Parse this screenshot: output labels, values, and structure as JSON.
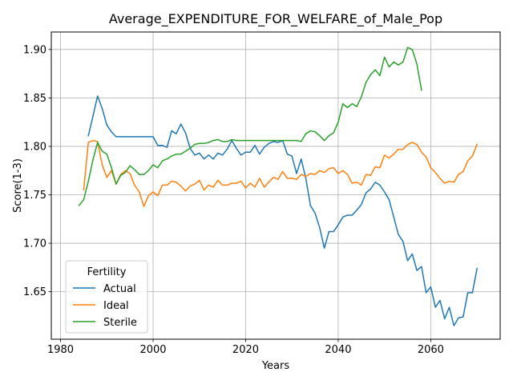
{
  "chart_data": {
    "type": "line",
    "title": "Average_EXPENDITURE_FOR_WELFARE_of_Male_Pop",
    "xlabel": "Years",
    "ylabel": "Score(1-3)",
    "xlim": [
      1978,
      2075
    ],
    "ylim": [
      1.601,
      1.918
    ],
    "xticks": [
      1980,
      2000,
      2020,
      2040,
      2060
    ],
    "xtick_labels": [
      "1980",
      "2000",
      "2020",
      "2040",
      "2060"
    ],
    "yticks": [
      1.65,
      1.7,
      1.75,
      1.8,
      1.85,
      1.9
    ],
    "ytick_labels": [
      "1.65",
      "1.70",
      "1.75",
      "1.80",
      "1.85",
      "1.90"
    ],
    "grid": true,
    "legend": {
      "title": "Fertility",
      "placement": "lower-left"
    },
    "series": [
      {
        "name": "Actual",
        "color": "#1f77b4",
        "x": [
          1986,
          1987,
          1988,
          1989,
          1990,
          1991,
          1992,
          1993,
          1994,
          1995,
          1996,
          1997,
          1998,
          1999,
          2000,
          2001,
          2002,
          2003,
          2004,
          2005,
          2006,
          2007,
          2008,
          2009,
          2010,
          2011,
          2012,
          2013,
          2014,
          2015,
          2016,
          2017,
          2018,
          2019,
          2020,
          2021,
          2022,
          2023,
          2024,
          2025,
          2026,
          2027,
          2028,
          2029,
          2030,
          2031,
          2032,
          2033,
          2034,
          2035,
          2036,
          2037,
          2038,
          2039,
          2040,
          2041,
          2042,
          2043,
          2044,
          2045,
          2046,
          2047,
          2048,
          2049,
          2050,
          2051,
          2052,
          2053,
          2054,
          2055,
          2056,
          2057,
          2058,
          2059,
          2060,
          2061,
          2062,
          2063,
          2064,
          2065,
          2066,
          2067,
          2068,
          2069,
          2070
        ],
        "values": [
          1.811,
          1.831,
          1.852,
          1.839,
          1.822,
          1.815,
          1.81,
          1.81,
          1.81,
          1.81,
          1.81,
          1.81,
          1.81,
          1.81,
          1.81,
          1.801,
          1.801,
          1.799,
          1.816,
          1.813,
          1.823,
          1.814,
          1.798,
          1.791,
          1.793,
          1.787,
          1.791,
          1.787,
          1.793,
          1.791,
          1.797,
          1.806,
          1.798,
          1.791,
          1.794,
          1.794,
          1.801,
          1.792,
          1.799,
          1.803,
          1.805,
          1.804,
          1.806,
          1.792,
          1.79,
          1.772,
          1.787,
          1.767,
          1.739,
          1.731,
          1.716,
          1.695,
          1.712,
          1.712,
          1.719,
          1.727,
          1.729,
          1.729,
          1.734,
          1.74,
          1.752,
          1.756,
          1.763,
          1.76,
          1.753,
          1.745,
          1.727,
          1.709,
          1.702,
          1.682,
          1.689,
          1.672,
          1.676,
          1.649,
          1.655,
          1.634,
          1.641,
          1.622,
          1.634,
          1.615,
          1.623,
          1.624,
          1.649,
          1.649,
          1.674
        ]
      },
      {
        "name": "Ideal",
        "color": "#ff7f0e",
        "x": [
          1985,
          1986,
          1987,
          1988,
          1989,
          1990,
          1991,
          1992,
          1993,
          1994,
          1995,
          1996,
          1997,
          1998,
          1999,
          2000,
          2001,
          2002,
          2003,
          2004,
          2005,
          2006,
          2007,
          2008,
          2009,
          2010,
          2011,
          2012,
          2013,
          2014,
          2015,
          2016,
          2017,
          2018,
          2019,
          2020,
          2021,
          2022,
          2023,
          2024,
          2025,
          2026,
          2027,
          2028,
          2029,
          2030,
          2031,
          2032,
          2033,
          2034,
          2035,
          2036,
          2037,
          2038,
          2039,
          2040,
          2041,
          2042,
          2043,
          2044,
          2045,
          2046,
          2047,
          2048,
          2049,
          2050,
          2051,
          2052,
          2053,
          2054,
          2055,
          2056,
          2057,
          2058,
          2059,
          2060,
          2061,
          2062,
          2063,
          2064,
          2065,
          2066,
          2067,
          2068,
          2069,
          2070
        ],
        "values": [
          1.755,
          1.804,
          1.806,
          1.805,
          1.781,
          1.768,
          1.775,
          1.761,
          1.771,
          1.775,
          1.772,
          1.76,
          1.753,
          1.738,
          1.749,
          1.753,
          1.749,
          1.76,
          1.76,
          1.764,
          1.763,
          1.759,
          1.754,
          1.759,
          1.761,
          1.765,
          1.755,
          1.76,
          1.758,
          1.765,
          1.76,
          1.76,
          1.762,
          1.762,
          1.764,
          1.757,
          1.762,
          1.758,
          1.767,
          1.758,
          1.763,
          1.768,
          1.766,
          1.774,
          1.767,
          1.767,
          1.766,
          1.771,
          1.769,
          1.772,
          1.771,
          1.775,
          1.773,
          1.777,
          1.778,
          1.772,
          1.775,
          1.771,
          1.762,
          1.763,
          1.76,
          1.771,
          1.77,
          1.779,
          1.778,
          1.791,
          1.788,
          1.792,
          1.797,
          1.797,
          1.802,
          1.804,
          1.802,
          1.794,
          1.789,
          1.778,
          1.773,
          1.767,
          1.762,
          1.764,
          1.763,
          1.771,
          1.774,
          1.785,
          1.79,
          1.802
        ]
      },
      {
        "name": "Sterile",
        "color": "#2ca02c",
        "x": [
          1984,
          1985,
          1986,
          1987,
          1988,
          1989,
          1990,
          1991,
          1992,
          1993,
          1994,
          1995,
          1996,
          1997,
          1998,
          1999,
          2000,
          2001,
          2002,
          2003,
          2004,
          2005,
          2006,
          2007,
          2008,
          2009,
          2010,
          2011,
          2012,
          2013,
          2014,
          2015,
          2016,
          2017,
          2018,
          2019,
          2020,
          2021,
          2022,
          2023,
          2024,
          2025,
          2026,
          2027,
          2028,
          2029,
          2030,
          2031,
          2032,
          2033,
          2034,
          2035,
          2036,
          2037,
          2038,
          2039,
          2040,
          2041,
          2042,
          2043,
          2044,
          2045,
          2046,
          2047,
          2048,
          2049,
          2050,
          2051,
          2052,
          2053,
          2054,
          2055,
          2056,
          2057,
          2058
        ],
        "values": [
          1.739,
          1.745,
          1.764,
          1.786,
          1.804,
          1.795,
          1.792,
          1.778,
          1.761,
          1.77,
          1.773,
          1.78,
          1.776,
          1.771,
          1.771,
          1.775,
          1.781,
          1.778,
          1.785,
          1.787,
          1.79,
          1.792,
          1.792,
          1.795,
          1.798,
          1.802,
          1.803,
          1.803,
          1.804,
          1.806,
          1.807,
          1.805,
          1.805,
          1.807,
          1.806,
          1.806,
          1.806,
          1.806,
          1.806,
          1.806,
          1.806,
          1.806,
          1.806,
          1.806,
          1.806,
          1.806,
          1.806,
          1.806,
          1.805,
          1.813,
          1.816,
          1.815,
          1.811,
          1.806,
          1.811,
          1.814,
          1.825,
          1.844,
          1.84,
          1.844,
          1.841,
          1.851,
          1.866,
          1.874,
          1.879,
          1.873,
          1.892,
          1.882,
          1.887,
          1.884,
          1.887,
          1.902,
          1.9,
          1.885,
          1.858
        ]
      }
    ]
  }
}
